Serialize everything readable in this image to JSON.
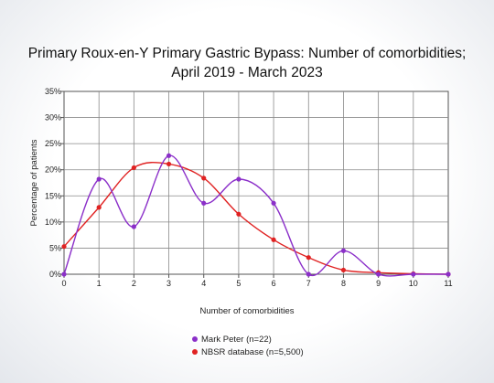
{
  "chart_data": {
    "type": "line",
    "title_line1": "Primary Roux-en-Y Primary Gastric Bypass: Number of comorbidities;",
    "title_line2": "April 2019 - March 2023",
    "xlabel": "Number of comorbidities",
    "ylabel": "Percentage of patients",
    "x": [
      0,
      1,
      2,
      3,
      4,
      5,
      6,
      7,
      8,
      9,
      10,
      11
    ],
    "x_ticks": [
      "0",
      "1",
      "2",
      "3",
      "4",
      "5",
      "6",
      "7",
      "8",
      "9",
      "10",
      "11"
    ],
    "y_ticks": [
      "0%",
      "5%",
      "10%",
      "15%",
      "20%",
      "25%",
      "30%",
      "35%"
    ],
    "xlim": [
      0,
      11
    ],
    "ylim": [
      0,
      35
    ],
    "grid": true,
    "legend_position": "bottom",
    "series": [
      {
        "name": "Mark Peter (n=22)",
        "color": "#8b2fc9",
        "values": [
          0,
          18.2,
          9.1,
          22.7,
          13.6,
          18.2,
          13.6,
          0,
          4.5,
          0,
          0,
          0
        ]
      },
      {
        "name": "NBSR database (n=5,500)",
        "color": "#e02222",
        "values": [
          5.3,
          12.8,
          20.4,
          21.1,
          18.4,
          11.5,
          6.6,
          3.2,
          0.8,
          0.3,
          0.1,
          0.0
        ]
      }
    ]
  }
}
